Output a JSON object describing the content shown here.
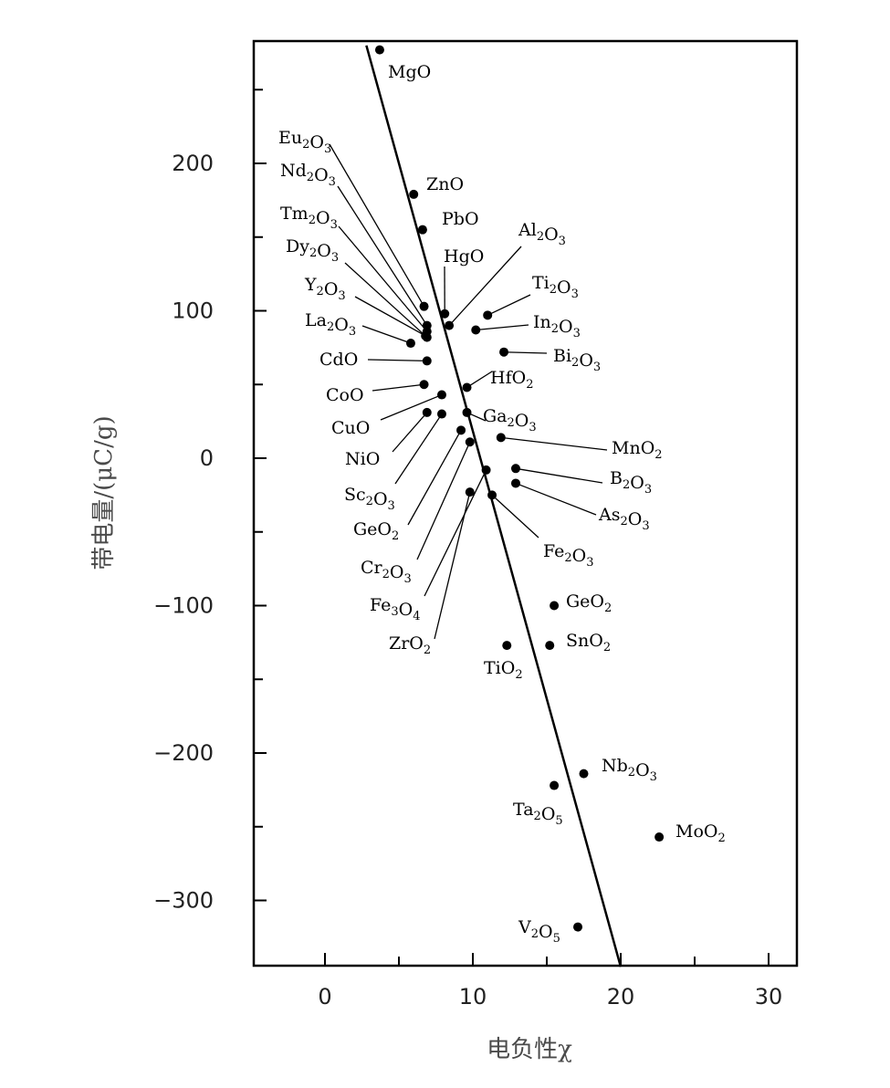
{
  "chart_data": {
    "type": "scatter",
    "title": "",
    "xlabel": "电负性χ",
    "ylabel": "带电量/(μC/g)",
    "xlim": [
      -5,
      32
    ],
    "ylim": [
      -345,
      280
    ],
    "xticks": [
      0,
      10,
      20,
      30
    ],
    "yticks": [
      -300,
      -200,
      -100,
      0,
      100,
      200
    ],
    "grid": false,
    "fit_line": {
      "x": [
        2.8,
        20
      ],
      "y": [
        280,
        -345
      ]
    },
    "points": [
      {
        "name": "MgO",
        "x": 3.7,
        "y": 277
      },
      {
        "name": "ZnO",
        "x": 6.0,
        "y": 179
      },
      {
        "name": "PbO",
        "x": 6.6,
        "y": 155
      },
      {
        "name": "Eu2O3",
        "x": 6.7,
        "y": 103
      },
      {
        "name": "Nd2O3",
        "x": 6.9,
        "y": 90
      },
      {
        "name": "Tm2O3",
        "x": 6.9,
        "y": 86
      },
      {
        "name": "Dy2O3",
        "x": 6.9,
        "y": 82
      },
      {
        "name": "Y2O3",
        "x": 6.8,
        "y": 83
      },
      {
        "name": "La2O3",
        "x": 5.8,
        "y": 78
      },
      {
        "name": "HgO",
        "x": 8.1,
        "y": 98
      },
      {
        "name": "Al2O3",
        "x": 8.4,
        "y": 90
      },
      {
        "name": "Ti2O3",
        "x": 11.0,
        "y": 97
      },
      {
        "name": "In2O3",
        "x": 10.2,
        "y": 87
      },
      {
        "name": "Bi2O3",
        "x": 12.1,
        "y": 72
      },
      {
        "name": "CdO",
        "x": 6.9,
        "y": 66
      },
      {
        "name": "CoO",
        "x": 6.7,
        "y": 50
      },
      {
        "name": "HfO2",
        "x": 9.6,
        "y": 48
      },
      {
        "name": "CuO",
        "x": 7.9,
        "y": 43
      },
      {
        "name": "NiO",
        "x": 6.9,
        "y": 31
      },
      {
        "name": "Sc2O3",
        "x": 7.9,
        "y": 30
      },
      {
        "name": "Ga2O3",
        "x": 9.6,
        "y": 31
      },
      {
        "name": "GeO2",
        "x": 9.2,
        "y": 19
      },
      {
        "name": "MnO2",
        "x": 11.9,
        "y": 14
      },
      {
        "name": "Cr2O3",
        "x": 9.8,
        "y": 11
      },
      {
        "name": "B2O3",
        "x": 12.9,
        "y": -7
      },
      {
        "name": "As2O3",
        "x": 12.9,
        "y": -17
      },
      {
        "name": "Fe3O4",
        "x": 10.9,
        "y": -8
      },
      {
        "name": "ZrO2",
        "x": 9.8,
        "y": -23
      },
      {
        "name": "Fe2O3",
        "x": 11.3,
        "y": -25
      },
      {
        "name": "GeO2",
        "x": 15.5,
        "y": -100
      },
      {
        "name": "SnO2",
        "x": 15.2,
        "y": -127
      },
      {
        "name": "TiO2",
        "x": 12.3,
        "y": -127
      },
      {
        "name": "Nb2O3",
        "x": 17.5,
        "y": -214
      },
      {
        "name": "Ta2O5",
        "x": 15.5,
        "y": -222
      },
      {
        "name": "MoO2",
        "x": 22.6,
        "y": -257
      },
      {
        "name": "V2O5",
        "x": 17.1,
        "y": -318
      }
    ]
  }
}
